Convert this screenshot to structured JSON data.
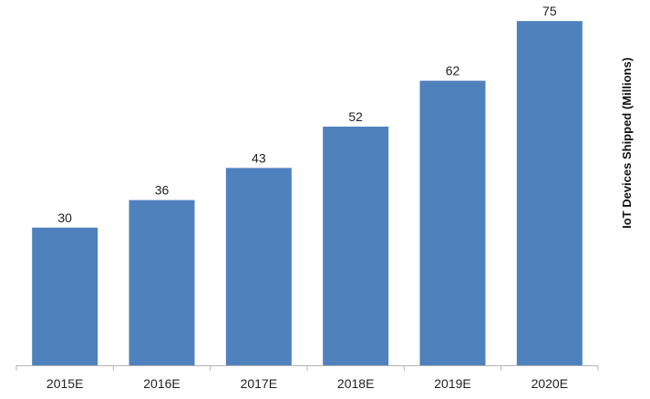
{
  "chart_data": {
    "type": "bar",
    "categories": [
      "2015E",
      "2016E",
      "2017E",
      "2018E",
      "2019E",
      "2020E"
    ],
    "values": [
      30,
      36,
      43,
      52,
      62,
      75
    ],
    "title": "",
    "xlabel": "",
    "ylabel": "IoT Devices Shipped (Millions)",
    "ylim": [
      0,
      78
    ],
    "grid": false,
    "legend": "none",
    "bar_color": "#4f81bd",
    "axis_color": "#b3b3b3"
  }
}
